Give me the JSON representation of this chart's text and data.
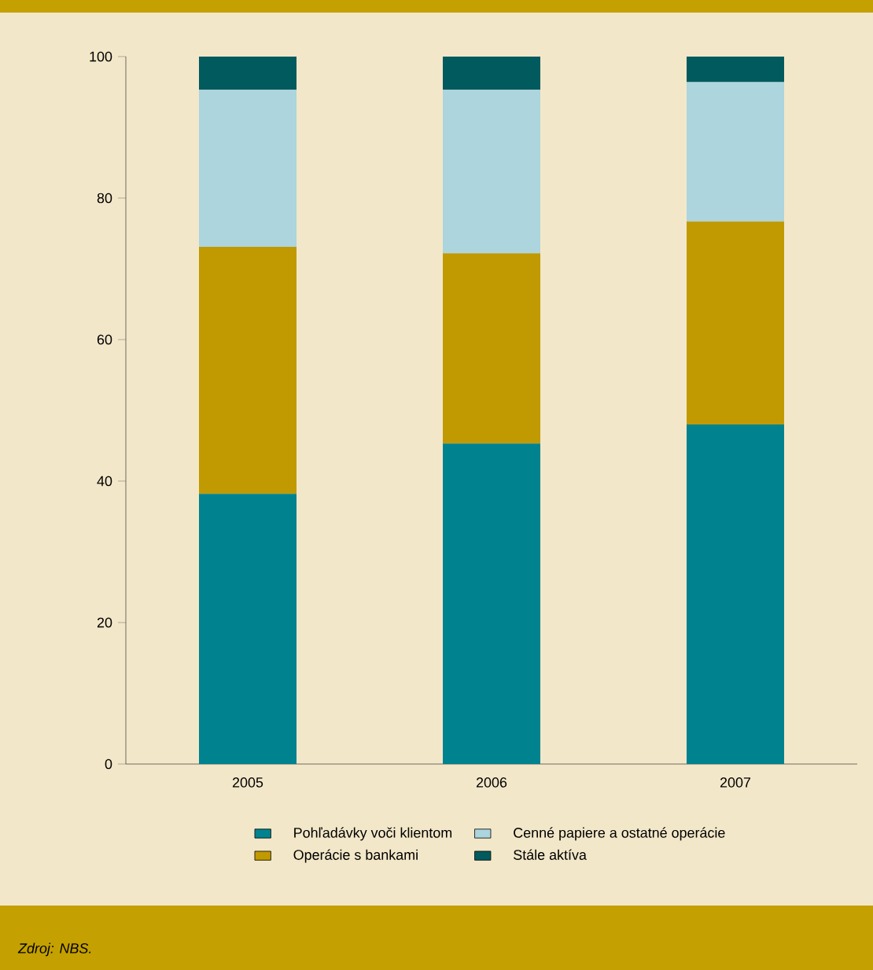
{
  "chart_data": {
    "type": "bar",
    "stacked": true,
    "categories": [
      "2005",
      "2006",
      "2007"
    ],
    "series": [
      {
        "name": "Pohľadávky voči klientom",
        "color": "#00838f",
        "values": [
          38.2,
          45.3,
          48.0
        ]
      },
      {
        "name": "Operácie s bankami",
        "color": "#c09a00",
        "values": [
          34.9,
          26.9,
          28.7
        ]
      },
      {
        "name": "Cenné papiere a ostatné operácie",
        "color": "#acd5de",
        "values": [
          22.2,
          23.1,
          19.7
        ]
      },
      {
        "name": "Stále aktíva",
        "color": "#005a5e",
        "values": [
          4.7,
          4.7,
          3.6
        ]
      }
    ],
    "ylim": [
      0,
      100
    ],
    "yticks": [
      0,
      20,
      40,
      60,
      80,
      100
    ],
    "legend": "bottom",
    "annotations": [
      "Zdroj: NBS."
    ]
  }
}
